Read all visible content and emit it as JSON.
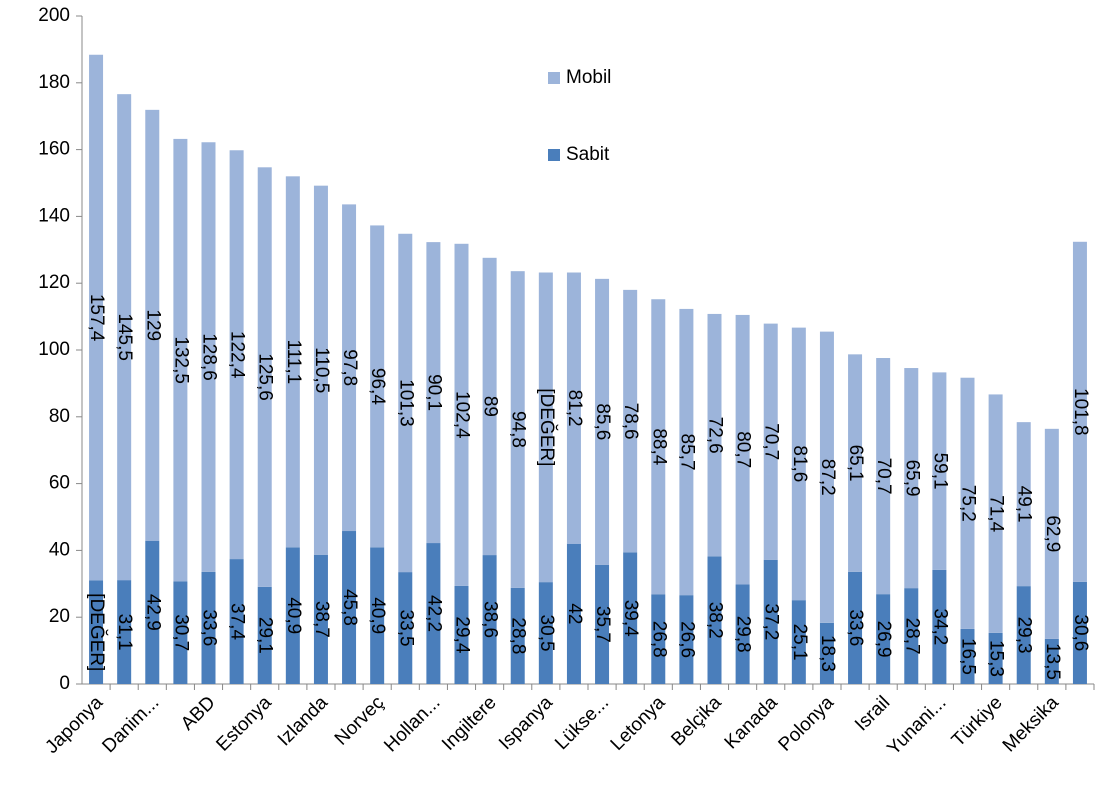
{
  "chart_data": {
    "type": "stacked_bar",
    "categories": [
      "Japonya",
      null,
      "Danim...",
      null,
      "ABD",
      null,
      "Estonya",
      null,
      "Izlanda",
      null,
      "Norveç",
      null,
      "Hollan...",
      null,
      "Ingiltere",
      null,
      "Ispanya",
      null,
      "Lükse...",
      null,
      "Letonya",
      null,
      "Belçika",
      null,
      "Kanada",
      null,
      "Polonya",
      null,
      "Israil",
      null,
      "Yunani...",
      null,
      "Türkiye",
      null,
      "Meksika",
      null
    ],
    "series": [
      {
        "name": "Sabit",
        "color": "#4a7ebb",
        "values": [
          31,
          31.1,
          42.9,
          30.7,
          33.6,
          37.4,
          29.1,
          40.9,
          38.7,
          45.8,
          40.9,
          33.5,
          42.2,
          29.4,
          38.6,
          28.8,
          30.5,
          42,
          35.7,
          39.4,
          26.8,
          26.6,
          38.2,
          29.8,
          37.2,
          25.1,
          18.3,
          33.6,
          26.9,
          28.7,
          34.2,
          16.5,
          15.3,
          29.3,
          13.5,
          30.6
        ],
        "value_labels": [
          "[DEĞER]",
          "31,1",
          "42,9",
          "30,7",
          "33,6",
          "37,4",
          "29,1",
          "40,9",
          "38,7",
          "45,8",
          "40,9",
          "33,5",
          "42,2",
          "29,4",
          "38,6",
          "28,8",
          "30,5",
          "42",
          "35,7",
          "39,4",
          "26,8",
          "26,6",
          "38,2",
          "29,8",
          "37,2",
          "25,1",
          "18,3",
          "33,6",
          "26,9",
          "28,7",
          "34,2",
          "16,5",
          "15,3",
          "29,3",
          "13,5",
          "30,6"
        ]
      },
      {
        "name": "Mobil",
        "color": "#9cb4da",
        "values": [
          157.4,
          145.5,
          129,
          132.5,
          128.6,
          122.4,
          125.6,
          111.1,
          110.5,
          97.8,
          96.4,
          101.3,
          90.1,
          102.4,
          89,
          94.8,
          92.7,
          81.2,
          85.6,
          78.6,
          88.4,
          85.7,
          72.6,
          80.7,
          70.7,
          81.6,
          87.2,
          65.1,
          70.7,
          65.9,
          59.1,
          75.2,
          71.4,
          49.1,
          62.9,
          101.8
        ],
        "value_labels": [
          "157,4",
          "145,5",
          "129",
          "132,5",
          "128,6",
          "122,4",
          "125,6",
          "111,1",
          "110,5",
          "97,8",
          "96,4",
          "101,3",
          "90,1",
          "102,4",
          "89",
          "94,8",
          "[DEĞER]",
          "81,2",
          "85,6",
          "78,6",
          "88,4",
          "85,7",
          "72,6",
          "80,7",
          "70,7",
          "81,6",
          "87,2",
          "65,1",
          "70,7",
          "65,9",
          "59,1",
          "75,2",
          "71,4",
          "49,1",
          "62,9",
          "101,8"
        ]
      }
    ],
    "ylim": [
      0,
      200
    ],
    "yticks": [
      0,
      20,
      40,
      60,
      80,
      100,
      120,
      140,
      160,
      180,
      200
    ]
  }
}
